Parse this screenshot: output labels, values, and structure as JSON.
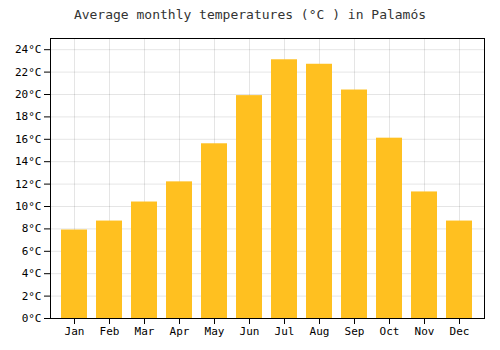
{
  "chart_data": {
    "type": "bar",
    "title": "Average monthly temperatures (°C ) in Palamós",
    "categories": [
      "Jan",
      "Feb",
      "Mar",
      "Apr",
      "May",
      "Jun",
      "Jul",
      "Aug",
      "Sep",
      "Oct",
      "Nov",
      "Dec"
    ],
    "values": [
      7.9,
      8.7,
      10.4,
      12.2,
      15.6,
      19.9,
      23.1,
      22.7,
      20.4,
      16.1,
      11.3,
      8.7
    ],
    "color": "#FFC020",
    "ylim": [
      0,
      25
    ],
    "yticks": [
      {
        "value": 0,
        "label": "0°C"
      },
      {
        "value": 2,
        "label": "2°C"
      },
      {
        "value": 4,
        "label": "4°C"
      },
      {
        "value": 6,
        "label": "6°C"
      },
      {
        "value": 8,
        "label": "8°C"
      },
      {
        "value": 10,
        "label": "10°C"
      },
      {
        "value": 12,
        "label": "12°C"
      },
      {
        "value": 14,
        "label": "14°C"
      },
      {
        "value": 16,
        "label": "16°C"
      },
      {
        "value": 18,
        "label": "18°C"
      },
      {
        "value": 20,
        "label": "20°C"
      },
      {
        "value": 22,
        "label": "22°C"
      },
      {
        "value": 24,
        "label": "24°C"
      }
    ],
    "grid": true
  }
}
